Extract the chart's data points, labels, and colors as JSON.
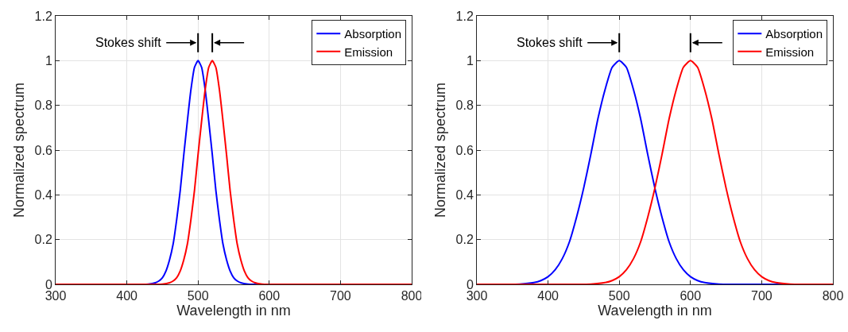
{
  "chart_data": [
    {
      "type": "line",
      "xlabel": "Wavelength in nm",
      "ylabel": "Normalized spectrum",
      "xlim": [
        300,
        800
      ],
      "xticks": [
        300,
        400,
        500,
        600,
        700,
        800
      ],
      "ylim": [
        0,
        1.2
      ],
      "yticks": [
        0,
        0.2,
        0.4,
        0.6,
        0.8,
        1,
        1.2
      ],
      "grid": true,
      "legend": "top right",
      "marker": "none",
      "line_style": "solid",
      "annotations": [
        "Stokes shift"
      ],
      "series": [
        {
          "name": "Absorption",
          "color": "#0000ff",
          "x": [
            300,
            420,
            430,
            440,
            445,
            450,
            455,
            460,
            465,
            470,
            475,
            480,
            485,
            490,
            495,
            500,
            505,
            510,
            515,
            520,
            525,
            530,
            535,
            540,
            545,
            550,
            555,
            560,
            570,
            580,
            800
          ],
          "values": [
            0,
            0,
            0.001,
            0.007,
            0.015,
            0.03,
            0.06,
            0.11,
            0.18,
            0.29,
            0.42,
            0.58,
            0.73,
            0.87,
            0.97,
            1,
            0.97,
            0.87,
            0.73,
            0.58,
            0.42,
            0.29,
            0.18,
            0.11,
            0.06,
            0.03,
            0.015,
            0.007,
            0.001,
            0,
            0
          ]
        },
        {
          "name": "Emission",
          "color": "#ff0000",
          "x": [
            300,
            440,
            450,
            460,
            465,
            470,
            475,
            480,
            485,
            490,
            495,
            500,
            505,
            510,
            515,
            520,
            525,
            530,
            535,
            540,
            545,
            550,
            555,
            560,
            565,
            570,
            575,
            580,
            590,
            600,
            800
          ],
          "values": [
            0,
            0,
            0.001,
            0.007,
            0.015,
            0.03,
            0.06,
            0.11,
            0.18,
            0.29,
            0.42,
            0.58,
            0.73,
            0.87,
            0.97,
            1,
            0.97,
            0.87,
            0.73,
            0.58,
            0.42,
            0.29,
            0.18,
            0.11,
            0.06,
            0.03,
            0.015,
            0.007,
            0.001,
            0,
            0
          ]
        }
      ]
    },
    {
      "type": "line",
      "xlabel": "Wavelength in nm",
      "ylabel": "Normalized spectrum",
      "xlim": [
        300,
        800
      ],
      "xticks": [
        300,
        400,
        500,
        600,
        700,
        800
      ],
      "ylim": [
        0,
        1.2
      ],
      "yticks": [
        0,
        0.2,
        0.4,
        0.6,
        0.8,
        1,
        1.2
      ],
      "grid": true,
      "legend": "top right",
      "marker": "none",
      "line_style": "solid",
      "annotations": [
        "Stokes shift"
      ],
      "series": [
        {
          "name": "Absorption",
          "color": "#0000ff",
          "x": [
            300,
            340,
            360,
            380,
            390,
            400,
            410,
            420,
            430,
            440,
            450,
            460,
            470,
            480,
            490,
            500,
            510,
            520,
            530,
            540,
            550,
            560,
            570,
            580,
            590,
            600,
            610,
            620,
            640,
            660,
            700,
            800
          ],
          "values": [
            0,
            0,
            0.001,
            0.008,
            0.017,
            0.034,
            0.065,
            0.115,
            0.19,
            0.3,
            0.43,
            0.58,
            0.74,
            0.87,
            0.97,
            1,
            0.97,
            0.87,
            0.74,
            0.58,
            0.43,
            0.3,
            0.19,
            0.115,
            0.065,
            0.034,
            0.017,
            0.008,
            0.001,
            0,
            0,
            0
          ]
        },
        {
          "name": "Emission",
          "color": "#ff0000",
          "x": [
            300,
            440,
            460,
            480,
            490,
            500,
            510,
            520,
            530,
            540,
            550,
            560,
            570,
            580,
            590,
            600,
            610,
            620,
            630,
            640,
            650,
            660,
            670,
            680,
            690,
            700,
            710,
            720,
            740,
            760,
            800,
            800
          ],
          "values": [
            0,
            0,
            0.001,
            0.008,
            0.017,
            0.034,
            0.065,
            0.115,
            0.19,
            0.3,
            0.43,
            0.58,
            0.74,
            0.87,
            0.97,
            1,
            0.97,
            0.87,
            0.74,
            0.58,
            0.43,
            0.3,
            0.19,
            0.115,
            0.065,
            0.034,
            0.017,
            0.008,
            0.001,
            0,
            0,
            0
          ]
        }
      ]
    }
  ]
}
